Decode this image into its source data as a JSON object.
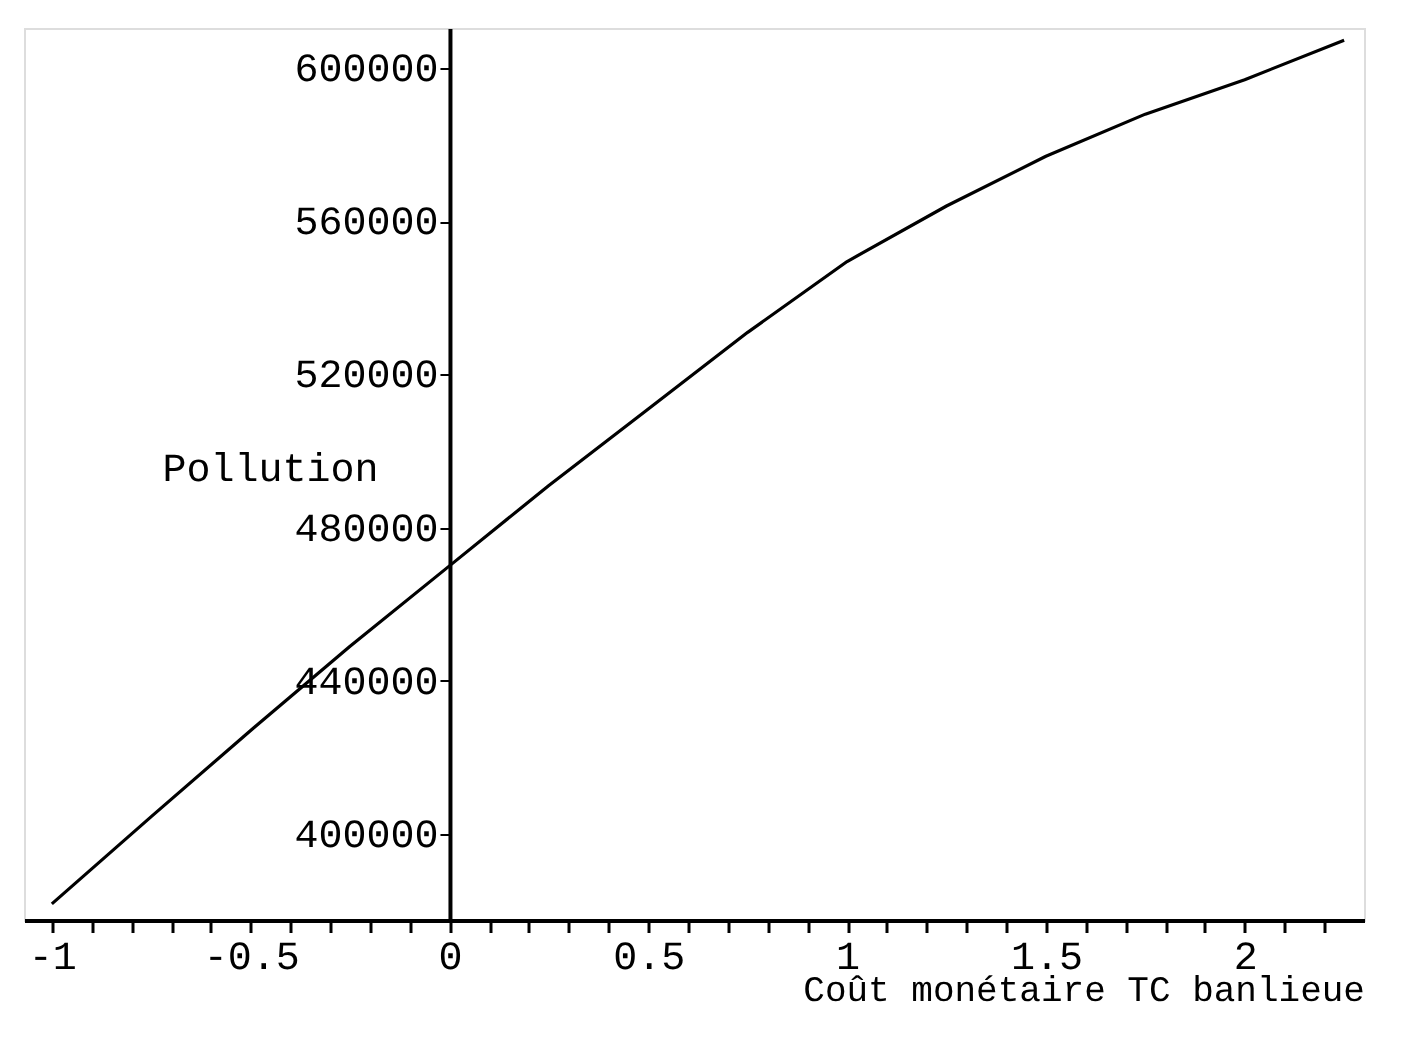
{
  "chart_data": {
    "type": "line",
    "xlabel": "Coût monétaire TC banlieue",
    "ylabel": "Pollution",
    "x": [
      -1,
      -0.75,
      -0.5,
      -0.25,
      0,
      0.25,
      0.5,
      0.75,
      1,
      1.25,
      1.5,
      1.75,
      2,
      2.25
    ],
    "series": [
      {
        "color": "#000000",
        "values": [
          381700,
          404500,
          427000,
          449000,
          470000,
          491000,
          511000,
          531000,
          549500,
          564000,
          577000,
          588000,
          597000,
          607300
        ]
      }
    ],
    "xlim": [
      -1.07,
      2.3
    ],
    "ylim": [
      377500,
      610500
    ],
    "xticks": [
      -1,
      {
        "value": -0.9,
        "label": null
      },
      {
        "value": -0.8,
        "label": null
      },
      {
        "value": -0.7,
        "label": null
      },
      {
        "value": -0.6,
        "label": null
      },
      -0.5,
      {
        "value": -0.4,
        "label": null
      },
      {
        "value": -0.3,
        "label": null
      },
      {
        "value": -0.2,
        "label": null
      },
      {
        "value": -0.1,
        "label": null
      },
      0,
      {
        "value": 0.1,
        "label": null
      },
      {
        "value": 0.2,
        "label": null
      },
      {
        "value": 0.3,
        "label": null
      },
      {
        "value": 0.4,
        "label": null
      },
      0.5,
      {
        "value": 0.6,
        "label": null
      },
      {
        "value": 0.7,
        "label": null
      },
      {
        "value": 0.8,
        "label": null
      },
      {
        "value": 0.9,
        "label": null
      },
      1,
      {
        "value": 1.1,
        "label": null
      },
      {
        "value": 1.2,
        "label": null
      },
      {
        "value": 1.3,
        "label": null
      },
      {
        "value": 1.4,
        "label": null
      },
      1.5,
      {
        "value": 1.6,
        "label": null
      },
      {
        "value": 1.7,
        "label": null
      },
      {
        "value": 1.8,
        "label": null
      },
      {
        "value": 1.9,
        "label": null
      },
      2,
      {
        "value": 2.1,
        "label": null
      },
      {
        "value": 2.2,
        "label": null
      }
    ],
    "yticks": [
      400000,
      440000,
      480000,
      520000,
      560000,
      600000
    ],
    "grid": false,
    "marker": "none",
    "line_style": "solid"
  }
}
